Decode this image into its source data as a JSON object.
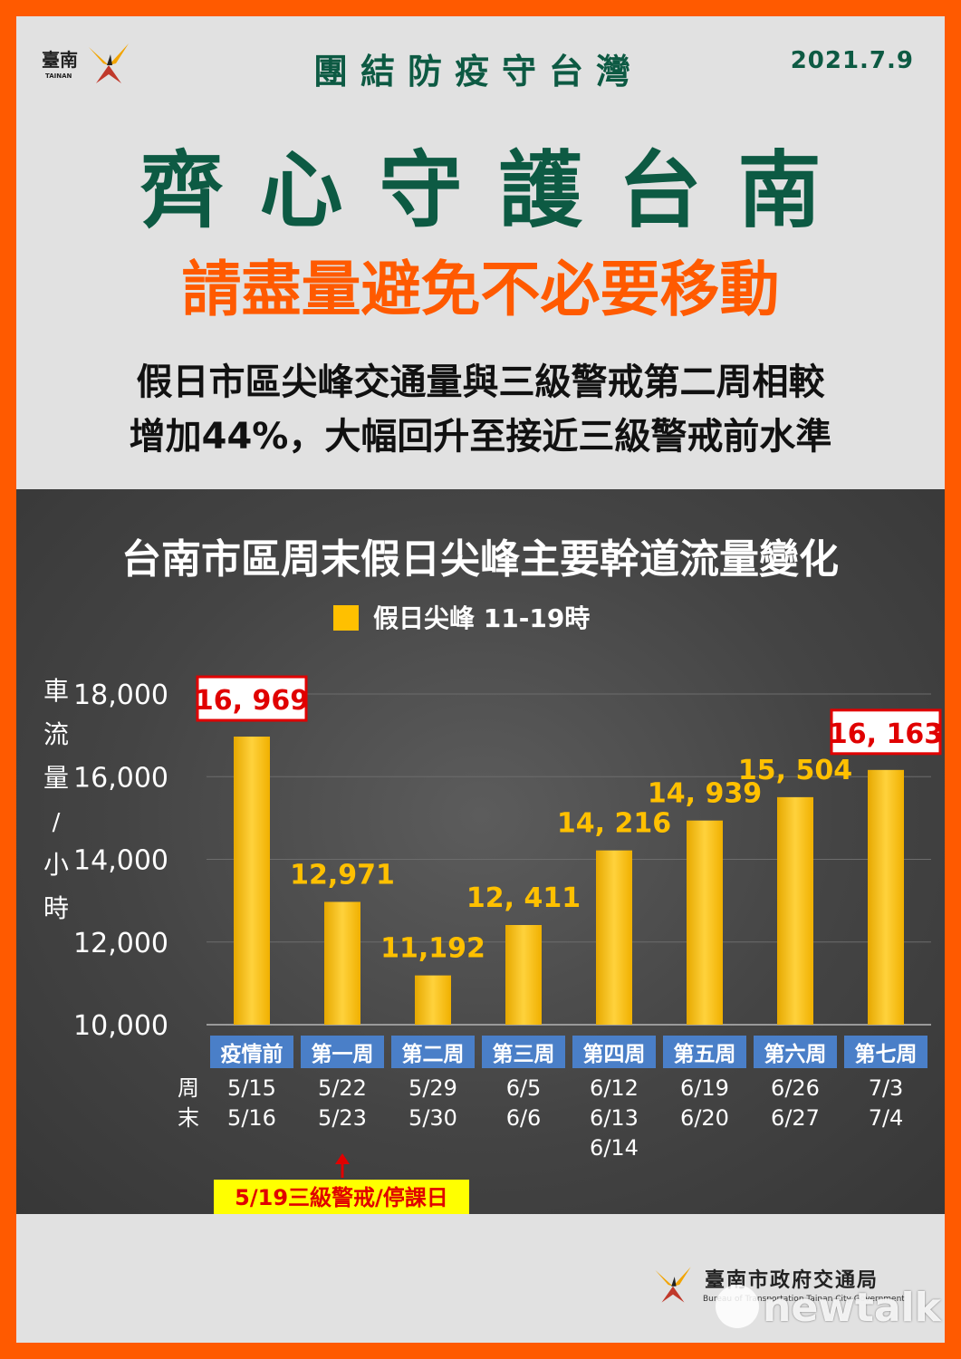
{
  "header": {
    "logo_text": "臺南",
    "logo_sub": "TAINAN",
    "slogan": "團結防疫守台灣",
    "date": "2021.7.9"
  },
  "headline": "齊心守護台南",
  "subheadline": "請盡量避免不必要移動",
  "description": {
    "line1": "假日市區尖峰交通量與三級警戒第二周相較",
    "line2": "增加44%，大幅回升至接近三級警戒前水準"
  },
  "colors": {
    "orange": "#ff5a00",
    "green": "#0d5a43",
    "bar": "#ffc000",
    "week_box": "#4a7fc8"
  },
  "chart_data": {
    "type": "bar",
    "title": "台南市區周末假日尖峰主要幹道流量變化",
    "legend": [
      "假日尖峰 11-19時"
    ],
    "ylabel": "車流量/小時",
    "ylim": [
      10000,
      18000
    ],
    "yticks": [
      "10,000",
      "12,000",
      "14,000",
      "16,000",
      "18,000"
    ],
    "ytick_values": [
      10000,
      12000,
      14000,
      16000,
      18000
    ],
    "categories": [
      "疫情前",
      "第一周",
      "第二周",
      "第三周",
      "第四周",
      "第五周",
      "第六周",
      "第七周"
    ],
    "values": [
      16969,
      12971,
      11192,
      12411,
      14216,
      14939,
      15504,
      16163
    ],
    "value_labels": [
      "16, 969",
      "12,971",
      "11,192",
      "12, 411",
      "14, 216",
      "14, 939",
      "15, 504",
      "16, 163"
    ],
    "highlighted": [
      true,
      false,
      false,
      false,
      false,
      false,
      false,
      true
    ],
    "weekend_label": "周末",
    "weekend_dates": [
      [
        "5/15",
        "5/16"
      ],
      [
        "5/22",
        "5/23"
      ],
      [
        "5/29",
        "5/30"
      ],
      [
        "6/5",
        "6/6"
      ],
      [
        "6/12",
        "6/13",
        "6/14"
      ],
      [
        "6/19",
        "6/20"
      ],
      [
        "6/26",
        "6/27"
      ],
      [
        "7/3",
        "7/4"
      ]
    ],
    "annotation": "5/19三級警戒/停課日",
    "grid": true
  },
  "footer": {
    "agency": "臺南市政府交通局",
    "agency_en": "Bureau of Transportation Tainan City Government"
  },
  "watermark": "newtalk"
}
